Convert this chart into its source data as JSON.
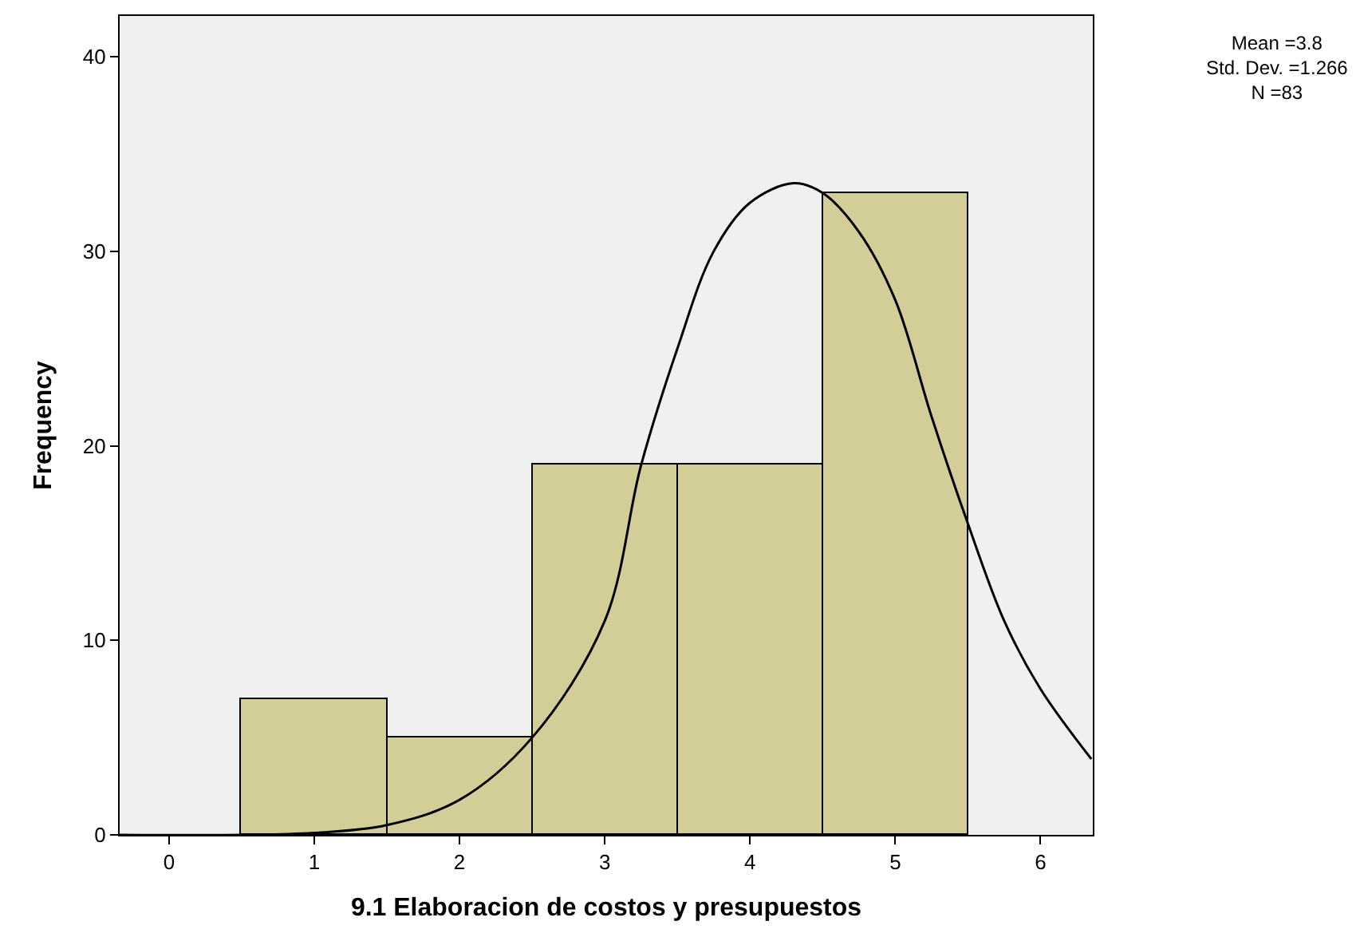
{
  "chart_data": {
    "type": "histogram",
    "xlabel": "9.1 Elaboracion de costos y presupuestos",
    "ylabel": "Frequency",
    "bins": [
      0.5,
      1.5,
      2.5,
      3.5,
      4.5,
      5.5
    ],
    "values": [
      7,
      5,
      19,
      19,
      33
    ],
    "color": "#d3ce97",
    "series": [
      {
        "type": "line",
        "color": "#000000",
        "x": [
          -0.34,
          0.5,
          1,
          1.5,
          2,
          2.5,
          3,
          3.25,
          3.5,
          3.75,
          4,
          4.3,
          4.5,
          4.75,
          5,
          5.25,
          5.5,
          5.75,
          6,
          6.35
        ],
        "values": [
          0,
          0,
          0.1,
          0.5,
          1.8,
          5,
          11,
          19,
          25,
          30,
          32.5,
          33.5,
          33,
          31,
          27.5,
          21.5,
          16,
          11,
          7.5,
          3.9
        ]
      }
    ],
    "xlim": [
      -0.34,
      6.36
    ],
    "ylim": [
      0,
      42.1
    ],
    "xticks": [
      0,
      1,
      2,
      3,
      4,
      5,
      6
    ],
    "yticks": [
      0,
      10,
      20,
      30,
      40
    ],
    "grid": false,
    "annotations": [
      "Mean =3.8\nStd. Dev. =1.266\nN =83"
    ]
  }
}
